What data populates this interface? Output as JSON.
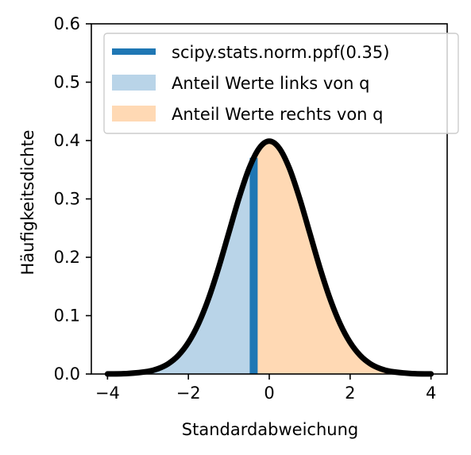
{
  "chart_data": {
    "type": "area",
    "xlabel": "Standardabweichung",
    "ylabel": "Häufigkeitsdichte",
    "xlim": [
      -4.4,
      4.4
    ],
    "ylim": [
      0,
      0.6
    ],
    "xticks": [
      -4,
      -2,
      0,
      2,
      4
    ],
    "xtick_labels": [
      "−4",
      "−2",
      "0",
      "2",
      "4"
    ],
    "yticks": [
      0.0,
      0.1,
      0.2,
      0.3,
      0.4,
      0.5,
      0.6
    ],
    "ytick_labels": [
      "0.0",
      "0.1",
      "0.2",
      "0.3",
      "0.4",
      "0.5",
      "0.6"
    ],
    "grid": false,
    "legend_position": "top-right",
    "curve": {
      "x": [
        -4.0,
        -3.5,
        -3.0,
        -2.75,
        -2.5,
        -2.25,
        -2.0,
        -1.75,
        -1.5,
        -1.25,
        -1.0,
        -0.75,
        -0.5,
        -0.25,
        0.0,
        0.25,
        0.5,
        0.75,
        1.0,
        1.25,
        1.5,
        1.75,
        2.0,
        2.25,
        2.5,
        2.75,
        3.0,
        3.5,
        4.0
      ],
      "y": [
        0.0001,
        0.0009,
        0.0044,
        0.0091,
        0.0175,
        0.0317,
        0.054,
        0.0863,
        0.1295,
        0.1826,
        0.242,
        0.3011,
        0.3521,
        0.3867,
        0.3989,
        0.3867,
        0.3521,
        0.3011,
        0.242,
        0.1826,
        0.1295,
        0.0863,
        0.054,
        0.0317,
        0.0175,
        0.0091,
        0.0044,
        0.0009,
        0.0001
      ],
      "color": "#000000"
    },
    "quantile": {
      "x": -0.385,
      "y": 0.3704,
      "color": "#1f77b4"
    },
    "series": [
      {
        "name": "scipy.stats.norm.ppf(0.35)",
        "kind": "vertical-line",
        "color": "#1f77b4"
      },
      {
        "name": "Anteil Werte links von q",
        "kind": "fill",
        "color": "#b9d4e8"
      },
      {
        "name": "Anteil Werte rechts von q",
        "kind": "fill",
        "color": "#ffd9b4"
      }
    ]
  }
}
